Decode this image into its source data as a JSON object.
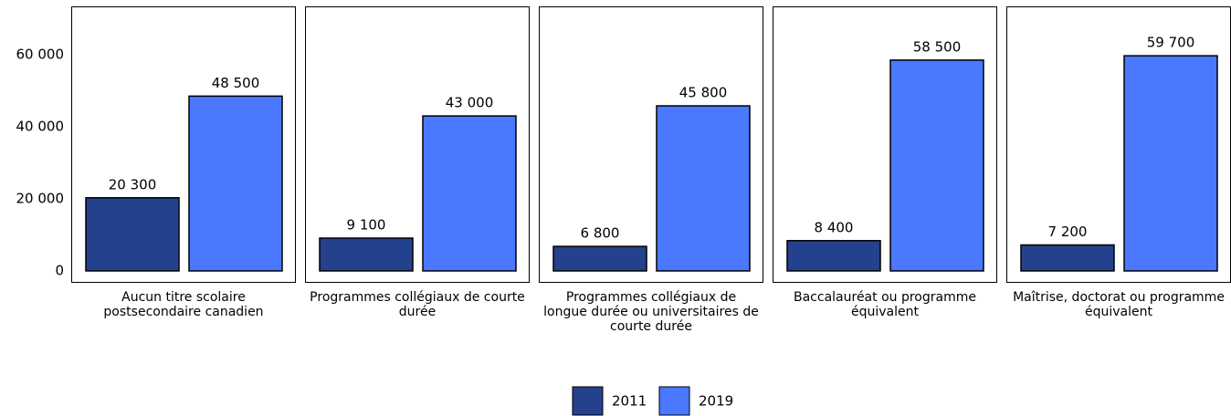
{
  "chart_data": {
    "type": "bar",
    "categories": [
      "Aucun titre scolaire postsecondaire canadien",
      "Programmes collégiaux de courte durée",
      "Programmes collégiaux de longue durée ou universitaires de courte durée",
      "Baccalauréat ou programme équivalent",
      "Maîtrise, doctorat ou programme équivalent"
    ],
    "series": [
      {
        "name": "2011",
        "color": "#24418e",
        "values": [
          20300,
          9100,
          6800,
          8400,
          7200
        ],
        "value_labels": [
          "20 300",
          "9 100",
          "6 800",
          "8 400",
          "7 200"
        ]
      },
      {
        "name": "2019",
        "color": "#4a78ff",
        "values": [
          48500,
          43000,
          45800,
          58500,
          59700
        ],
        "value_labels": [
          "48 500",
          "43 000",
          "45 800",
          "58 500",
          "59 700"
        ]
      }
    ],
    "ylim": [
      -3300,
      73400
    ],
    "yticks": [
      0,
      {
        "value": 20000,
        "label": "20 000"
      },
      {
        "value": 40000,
        "label": "40 000"
      },
      {
        "value": 60000,
        "label": "60 000"
      }
    ]
  }
}
